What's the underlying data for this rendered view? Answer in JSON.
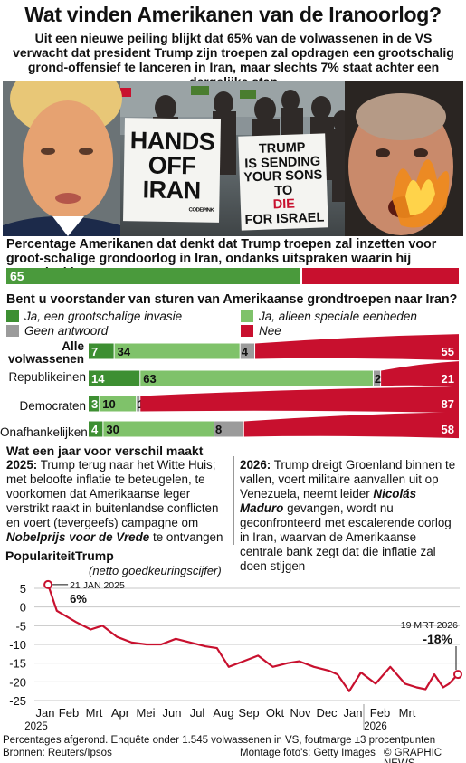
{
  "title": "Wat vinden Amerikanen van de Iranoorlog?",
  "subtitle": "Uit een nieuwe peiling blijkt dat 65% van de volwassenen in de VS verwacht dat president Trump zijn troepen zal opdragen een grootschalig grond-offensief te lanceren in Iran, maar slechts 7% staat achter een dergelijke stap",
  "photo": {
    "sign_left": [
      "HANDS",
      "OFF",
      "IRAN"
    ],
    "sign_left_small": "CODEPINK",
    "sign_right": [
      "TRUMP",
      "IS SENDING",
      "YOUR SONS",
      "TO",
      "DIE",
      "FOR ISRAEL"
    ]
  },
  "q1": {
    "text": "Percentage Amerikanen dat denkt dat Trump troepen zal inzetten voor groot-schalige grondoorlog in Iran, ondanks uitspraken waarin hij tegendeel beweert",
    "value": 65,
    "value_label": "65"
  },
  "q2": {
    "text": "Bent u voorstander van sturen van Amerikaanse grondtroepen naar Iran?",
    "legend": [
      {
        "label": "Ja, een grootschalige invasie",
        "color": "#3d8f32"
      },
      {
        "label": "Ja, alleen speciale eenheden",
        "color": "#7fc26a"
      },
      {
        "label": "Geen antwoord",
        "color": "#9b9b9b"
      },
      {
        "label": "Nee",
        "color": "#c8102e"
      }
    ]
  },
  "chart_data": [
    {
      "type": "bar",
      "stacked": true,
      "categories": [
        "Alle volwassenen",
        "Republikeinen",
        "Democraten",
        "Onafhankelijken"
      ],
      "series": [
        {
          "name": "Ja, een grootschalige invasie",
          "values": [
            7,
            14,
            3,
            4
          ]
        },
        {
          "name": "Ja, alleen speciale eenheden",
          "values": [
            34,
            63,
            10,
            30
          ]
        },
        {
          "name": "Geen antwoord",
          "values": [
            4,
            2,
            1,
            8
          ]
        },
        {
          "name": "Nee",
          "values": [
            55,
            21,
            87,
            58
          ]
        }
      ]
    },
    {
      "type": "line",
      "title": "PopulariteitTrump",
      "subtitle": "(netto goedkeuringscijfer)",
      "x_ticks": [
        "Jan",
        "Feb",
        "Mrt",
        "Apr",
        "Mei",
        "Jun",
        "Jul",
        "Aug",
        "Sep",
        "Okt",
        "Nov",
        "Dec",
        "Jan",
        "Feb",
        "Mrt"
      ],
      "year_labels": [
        "2025",
        "2026"
      ],
      "ylim": [
        -25,
        5
      ],
      "y_ticks": [
        5,
        0,
        -5,
        -10,
        -15,
        -20,
        -25
      ],
      "x_range": [
        0,
        14.6
      ],
      "series": [
        {
          "values": [
            [
              0.65,
              6
            ],
            [
              0.95,
              -1
            ],
            [
              1.6,
              -4
            ],
            [
              2.1,
              -6
            ],
            [
              2.5,
              -5
            ],
            [
              3.0,
              -8
            ],
            [
              3.5,
              -9.5
            ],
            [
              4.0,
              -10
            ],
            [
              4.5,
              -10
            ],
            [
              5.0,
              -8.5
            ],
            [
              5.5,
              -9.5
            ],
            [
              6.0,
              -10.5
            ],
            [
              6.4,
              -11
            ],
            [
              6.8,
              -16
            ],
            [
              7.3,
              -14.5
            ],
            [
              7.8,
              -13
            ],
            [
              8.3,
              -16
            ],
            [
              8.8,
              -15
            ],
            [
              9.2,
              -14.5
            ],
            [
              9.7,
              -16
            ],
            [
              10.2,
              -17
            ],
            [
              10.5,
              -18
            ],
            [
              10.9,
              -22.5
            ],
            [
              11.3,
              -17.5
            ],
            [
              11.8,
              -20.5
            ],
            [
              12.3,
              -16
            ],
            [
              12.8,
              -20.5
            ],
            [
              13.2,
              -21.5
            ],
            [
              13.5,
              -22
            ],
            [
              13.8,
              -18
            ],
            [
              14.1,
              -21.5
            ],
            [
              14.3,
              -20.5
            ],
            [
              14.6,
              -18
            ]
          ]
        }
      ],
      "annotations": [
        {
          "date": "21 JAN 2025",
          "value": "6%"
        },
        {
          "date": "19 MRT 2026",
          "value": "-18%"
        }
      ]
    }
  ],
  "history": {
    "title": "Wat een jaar voor verschil maakt",
    "left": {
      "year": "2025:",
      "text": "Trump terug naar het Witte Huis; met beloofte inflatie te beteugelen, te voorkomen dat Amerikaanse leger verstrikt raakt in buitenlandse conflicten en voert (tevergeefs) campagne om",
      "emph": "Nobelprijs voor de Vrede",
      "tail": "te ontvangen"
    },
    "right": {
      "year": "2026:",
      "text": "Trump dreigt Groenland binnen te vallen, voert militaire aanvallen uit op Venezuela, neemt leider",
      "emph": "Nicolás Maduro",
      "tail": "gevangen, wordt nu geconfronteerd met escalerende oorlog in Iran, waarvan de Amerikaanse centrale bank zegt dat die inflatie zal doen stijgen"
    }
  },
  "footer": {
    "note": "Percentages afgerond. Enquête onder 1.545 volwassenen in VS, foutmarge ±3 procentpunten",
    "sources": "Bronnen: Reuters/Ipsos",
    "photo_credit": "Montage foto's: Getty Images",
    "copyright": "© GRAPHIC NEWS"
  },
  "watermark": "GRAPHIC NEWS"
}
